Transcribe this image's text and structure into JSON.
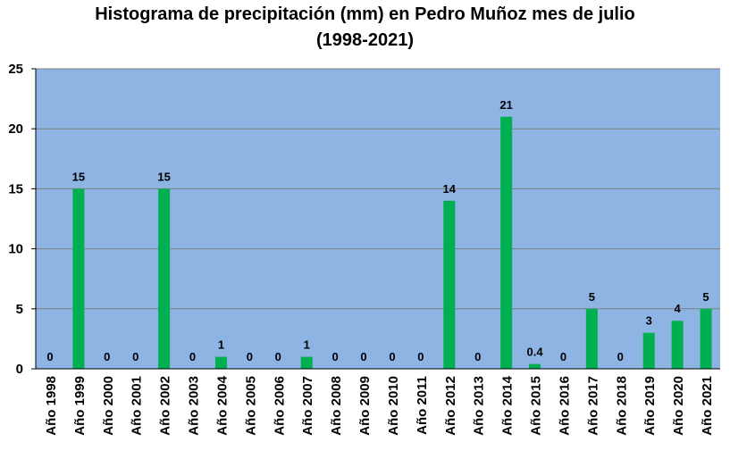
{
  "chart_data": {
    "type": "bar",
    "title_line1": "Histograma de precipitación (mm) en Pedro Muñoz mes de julio",
    "title_line2": "(1998-2021)",
    "xlabel": "",
    "ylabel": "",
    "ylim": [
      0,
      25
    ],
    "yticks": [
      "0",
      "5",
      "10",
      "15",
      "20",
      "25"
    ],
    "grid": true,
    "categories": [
      "Año 1998",
      "Año 1999",
      "Año 2000",
      "Año 2001",
      "Año 2002",
      "Año 2003",
      "Año 2004",
      "Año 2005",
      "Año 2006",
      "Año 2007",
      "Año 2008",
      "Año 2009",
      "Año 2010",
      "Año 2011",
      "Año 2012",
      "Año 2013",
      "Año 2014",
      "Año 2015",
      "Año 2016",
      "Año 2017",
      "Año 2018",
      "Año 2019",
      "Año 2020",
      "Año 2021"
    ],
    "values": [
      0,
      15,
      0,
      0,
      15,
      0,
      1,
      0,
      0,
      1,
      0,
      0,
      0,
      0,
      14,
      0,
      21,
      0.4,
      0,
      5,
      0,
      3,
      4,
      5
    ],
    "data_labels": [
      "0",
      "15",
      "0",
      "0",
      "15",
      "0",
      "1",
      "0",
      "0",
      "1",
      "0",
      "0",
      "0",
      "0",
      "14",
      "0",
      "21",
      "0.4",
      "0",
      "5",
      "0",
      "3",
      "4",
      "5"
    ],
    "colors": {
      "plot_background": "#8EB4E3",
      "bar": "#00B050",
      "grid": "#7F7F7F"
    }
  }
}
